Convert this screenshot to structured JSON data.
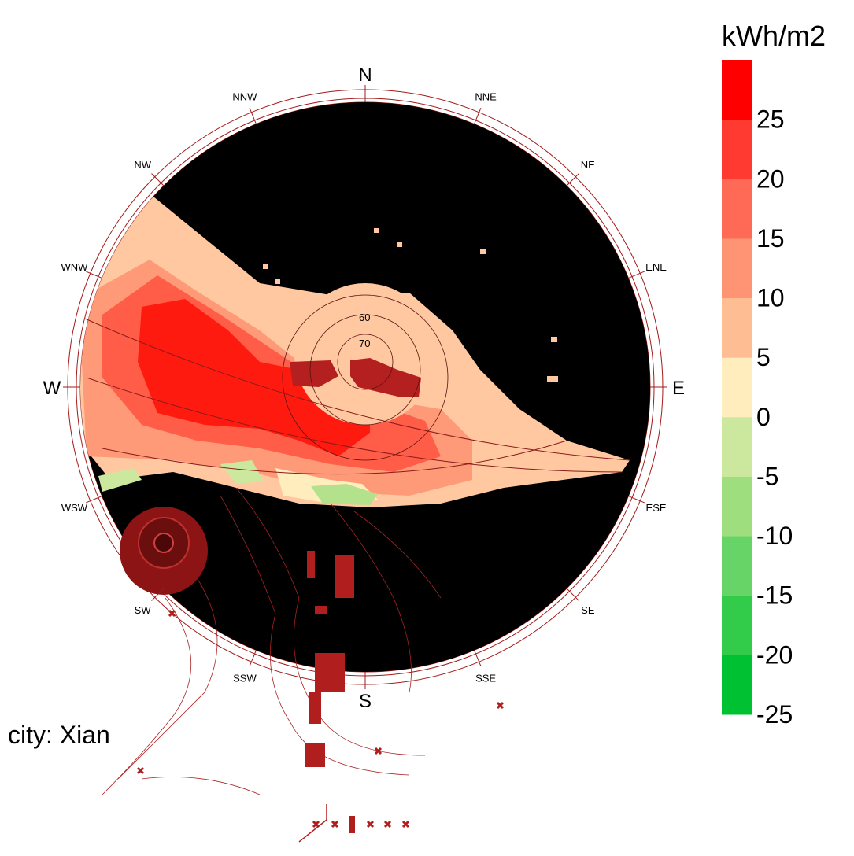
{
  "chart_data": {
    "type": "heatmap",
    "subtype": "radial sky-dome radiation map",
    "city_label": "city: Xian",
    "unit": "kWh/m2",
    "directions": [
      "N",
      "NNE",
      "NE",
      "ENE",
      "E",
      "ESE",
      "SE",
      "SSE",
      "S",
      "SSW",
      "SW",
      "WSW",
      "W",
      "WNW",
      "NW",
      "NNW"
    ],
    "major_directions": [
      "N",
      "E",
      "S",
      "W"
    ],
    "altitude_ring_labels": [
      "60",
      "70"
    ],
    "legend": {
      "ticks": [
        25,
        20,
        15,
        10,
        5,
        0,
        -5,
        -10,
        -15,
        -20,
        -25
      ],
      "range": [
        -25,
        30
      ],
      "colors": [
        "#00c131",
        "#33cc4a",
        "#66d466",
        "#9ede7f",
        "#cce89e",
        "#ffedbe",
        "#ffbd93",
        "#ff9475",
        "#ff6a56",
        "#ff3b31",
        "#ff0000"
      ]
    },
    "background_color": "#000000",
    "accent_color": "#9b1c1c"
  }
}
